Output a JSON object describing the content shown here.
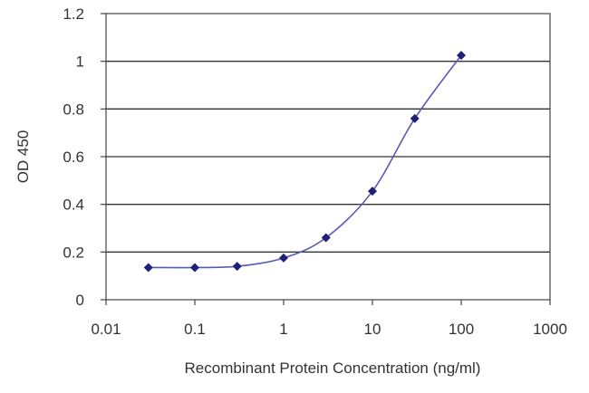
{
  "chart_data": {
    "type": "scatter",
    "xlabel": "Recombinant Protein Concentration (ng/ml)",
    "ylabel": "OD 450",
    "x_scale": "log",
    "xlim": [
      0.01,
      1000
    ],
    "ylim": [
      0,
      1.2
    ],
    "x_ticks": [
      0.01,
      0.1,
      1,
      10,
      100,
      1000
    ],
    "x_tick_labels": [
      "0.01",
      "0.1",
      "1",
      "10",
      "100",
      "1000"
    ],
    "y_ticks": [
      0,
      0.2,
      0.4,
      0.6,
      0.8,
      1,
      1.2
    ],
    "y_tick_labels": [
      "0",
      "0.2",
      "0.4",
      "0.6",
      "0.8",
      "1",
      "1.2"
    ],
    "grid": "horizontal",
    "legend": "none",
    "series": [
      {
        "x": [
          0.03,
          0.1,
          0.3,
          1,
          3,
          10,
          30,
          100
        ],
        "y": [
          0.135,
          0.135,
          0.14,
          0.175,
          0.26,
          0.455,
          0.76,
          1.025
        ],
        "fit_curve": true
      }
    ],
    "colors": {
      "series": "#1f1f7a",
      "curve": "#5a5ab4",
      "grid": "#333333",
      "frame": "#444444"
    }
  }
}
